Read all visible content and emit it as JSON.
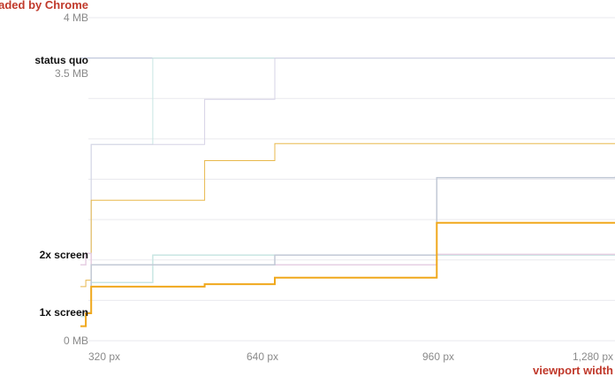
{
  "chart_data": {
    "type": "line",
    "title": "loaded by Chrome",
    "xlabel": "viewport width",
    "ylabel": "",
    "xlim": [
      300,
      1290
    ],
    "ylim": [
      0,
      4
    ],
    "x_ticks": [
      {
        "value": 320,
        "label": "320 px"
      },
      {
        "value": 640,
        "label": "640 px"
      },
      {
        "value": 960,
        "label": "960 px"
      },
      {
        "value": 1280,
        "label": "1,280 px"
      }
    ],
    "y_ticks": [
      {
        "value": 0,
        "label": "0 MB"
      },
      {
        "value": 3.5,
        "label": "3.5 MB"
      },
      {
        "value": 4,
        "label": "4 MB"
      }
    ],
    "grid_y": [
      0,
      0.5,
      1,
      1.5,
      2,
      2.5,
      3,
      3.5,
      4
    ],
    "grid": true,
    "annotations": [
      {
        "text": "status quo",
        "value": 3.5
      },
      {
        "text": "2x screen",
        "value": 1.08
      },
      {
        "text": "1x screen",
        "value": 0.35
      }
    ],
    "series": [
      {
        "color": "#b8c0d6",
        "width": 1,
        "x": [
          300,
          310,
          320,
          434,
          530,
          660,
          1290
        ],
        "y": [
          3.5,
          3.5,
          3.5,
          3.5,
          3.5,
          3.5,
          3.5
        ]
      },
      {
        "color": "#c9e6e3",
        "width": 1,
        "x": [
          300,
          310,
          320,
          434,
          530,
          1290
        ],
        "y": [
          0.35,
          0.35,
          2.43,
          3.5,
          3.5,
          3.5
        ]
      },
      {
        "color": "#d6d3e6",
        "width": 1,
        "x": [
          300,
          310,
          320,
          530,
          660,
          1290
        ],
        "y": [
          0.35,
          0.35,
          2.43,
          2.99,
          3.5,
          3.5
        ]
      },
      {
        "color": "#e8b84c",
        "width": 1,
        "x": [
          300,
          310,
          320,
          530,
          660,
          1290
        ],
        "y": [
          0.67,
          0.75,
          1.74,
          2.23,
          2.44,
          2.44
        ]
      },
      {
        "color": "#c9e6e3",
        "width": 1.5,
        "x": [
          300,
          310,
          320,
          434,
          530,
          1290
        ],
        "y": [
          0.3,
          0.35,
          0.72,
          1.06,
          1.06,
          1.06
        ]
      },
      {
        "color": "#e6cfe3",
        "width": 1.5,
        "x": [
          300,
          310,
          320,
          530,
          660,
          960,
          1290
        ],
        "y": [
          0.94,
          1.08,
          0.94,
          0.94,
          0.94,
          1.07,
          1.07
        ]
      },
      {
        "color": "#c2c9d6",
        "width": 1.5,
        "x": [
          300,
          310,
          320,
          530,
          660,
          960,
          1290
        ],
        "y": [
          0.35,
          0.35,
          0.94,
          0.94,
          1.06,
          2.02,
          2.03
        ]
      },
      {
        "color": "#f0a81c",
        "width": 2,
        "x": [
          300,
          310,
          320,
          530,
          660,
          960,
          1290
        ],
        "y": [
          0.18,
          0.34,
          0.67,
          0.7,
          0.78,
          1.46,
          1.46
        ]
      }
    ]
  }
}
